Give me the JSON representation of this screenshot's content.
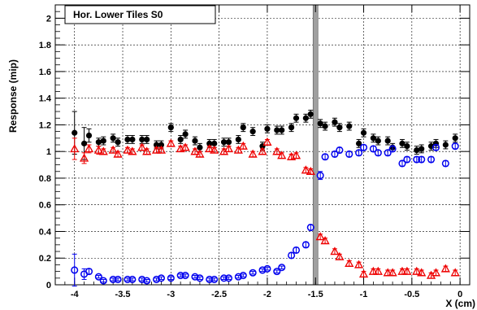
{
  "chart_data": {
    "type": "scatter",
    "title": "Hor. Lower Tiles S0",
    "xlabel": "X (cm)",
    "ylabel": "Response (mip)",
    "xlim": [
      -4.2,
      0.1
    ],
    "ylim": [
      0,
      2.1
    ],
    "x_ticks": [
      -4,
      -3.5,
      -3,
      -2.5,
      -2,
      -1.5,
      -1,
      -0.5,
      0
    ],
    "x_tick_labels": [
      "-4",
      "-3.5",
      "-3",
      "-2.5",
      "-2",
      "-1.5",
      "-1",
      "-0.5",
      "0"
    ],
    "y_ticks": [
      0,
      0.2,
      0.4,
      0.6,
      0.8,
      1,
      1.2,
      1.4,
      1.6,
      1.8,
      2
    ],
    "y_tick_labels": [
      "0",
      "0.2",
      "0.4",
      "0.6",
      "0.8",
      "1",
      "1.2",
      "1.4",
      "1.6",
      "1.8",
      "2"
    ],
    "grid": true,
    "vertical_band": {
      "x": -1.5,
      "color": "#a0a0a0"
    },
    "series": [
      {
        "marker": "filled-circle",
        "color": "#000000",
        "x": [
          -4.0,
          -3.9,
          -3.85,
          -3.75,
          -3.7,
          -3.6,
          -3.55,
          -3.45,
          -3.4,
          -3.3,
          -3.25,
          -3.15,
          -3.1,
          -3.0,
          -2.9,
          -2.85,
          -2.75,
          -2.7,
          -2.6,
          -2.55,
          -2.45,
          -2.4,
          -2.3,
          -2.25,
          -2.15,
          -2.05,
          -2.0,
          -1.9,
          -1.85,
          -1.75,
          -1.7,
          -1.6,
          -1.55,
          -1.45,
          -1.4,
          -1.3,
          -1.25,
          -1.15,
          -1.05,
          -1.0,
          -0.9,
          -0.85,
          -0.75,
          -0.7,
          -0.6,
          -0.55,
          -0.45,
          -0.4,
          -0.3,
          -0.25,
          -0.15,
          -0.05
        ],
        "y": [
          1.14,
          1.06,
          1.12,
          1.07,
          1.08,
          1.1,
          1.07,
          1.09,
          1.09,
          1.09,
          1.09,
          1.05,
          1.05,
          1.18,
          1.09,
          1.13,
          1.08,
          1.03,
          1.06,
          1.06,
          1.07,
          1.07,
          1.09,
          1.18,
          1.15,
          1.04,
          1.17,
          1.16,
          1.16,
          1.18,
          1.25,
          1.25,
          1.28,
          1.21,
          1.19,
          1.22,
          1.18,
          1.19,
          1.06,
          1.14,
          1.1,
          1.08,
          1.08,
          1.03,
          1.06,
          1.04,
          1.01,
          1.02,
          1.04,
          1.06,
          1.05,
          1.1
        ],
        "err": [
          0.16,
          0.12,
          0.05,
          0.03,
          0.03,
          0.03,
          0.03,
          0.03,
          0.03,
          0.03,
          0.03,
          0.03,
          0.03,
          0.03,
          0.03,
          0.03,
          0.03,
          0.03,
          0.03,
          0.03,
          0.03,
          0.03,
          0.03,
          0.03,
          0.03,
          0.03,
          0.03,
          0.03,
          0.03,
          0.03,
          0.03,
          0.03,
          0.03,
          0.03,
          0.03,
          0.03,
          0.03,
          0.03,
          0.03,
          0.03,
          0.03,
          0.03,
          0.03,
          0.03,
          0.03,
          0.03,
          0.03,
          0.03,
          0.03,
          0.03,
          0.03,
          0.03
        ]
      },
      {
        "marker": "open-circle",
        "color": "#0000ee",
        "x": [
          -4.0,
          -3.9,
          -3.85,
          -3.75,
          -3.7,
          -3.6,
          -3.55,
          -3.45,
          -3.4,
          -3.3,
          -3.25,
          -3.15,
          -3.1,
          -3.0,
          -2.9,
          -2.85,
          -2.75,
          -2.7,
          -2.6,
          -2.55,
          -2.45,
          -2.4,
          -2.3,
          -2.25,
          -2.15,
          -2.05,
          -2.0,
          -1.9,
          -1.85,
          -1.75,
          -1.7,
          -1.6,
          -1.55,
          -1.45,
          -1.4,
          -1.3,
          -1.25,
          -1.15,
          -1.05,
          -1.0,
          -0.9,
          -0.85,
          -0.75,
          -0.7,
          -0.6,
          -0.55,
          -0.45,
          -0.4,
          -0.3,
          -0.25,
          -0.15,
          -0.05
        ],
        "y": [
          0.11,
          0.08,
          0.1,
          0.06,
          0.03,
          0.04,
          0.04,
          0.04,
          0.04,
          0.04,
          0.03,
          0.04,
          0.05,
          0.05,
          0.07,
          0.07,
          0.06,
          0.05,
          0.04,
          0.04,
          0.05,
          0.05,
          0.06,
          0.07,
          0.09,
          0.11,
          0.12,
          0.1,
          0.13,
          0.22,
          0.26,
          0.3,
          0.43,
          0.82,
          0.96,
          0.98,
          1.01,
          0.98,
          0.99,
          1.03,
          1.02,
          0.99,
          0.99,
          1.02,
          0.91,
          0.94,
          0.94,
          0.94,
          0.94,
          1.03,
          0.91,
          1.04
        ],
        "err": [
          0.12,
          0.04,
          0.02,
          0.01,
          0.01,
          0.01,
          0.01,
          0.01,
          0.01,
          0.01,
          0.01,
          0.01,
          0.01,
          0.01,
          0.01,
          0.01,
          0.01,
          0.01,
          0.01,
          0.01,
          0.01,
          0.01,
          0.01,
          0.01,
          0.01,
          0.01,
          0.01,
          0.01,
          0.01,
          0.02,
          0.02,
          0.02,
          0.02,
          0.03,
          0.02,
          0.02,
          0.02,
          0.02,
          0.02,
          0.02,
          0.02,
          0.02,
          0.02,
          0.02,
          0.02,
          0.02,
          0.02,
          0.02,
          0.02,
          0.02,
          0.02,
          0.02
        ]
      },
      {
        "marker": "open-triangle",
        "color": "#ee0000",
        "x": [
          -4.0,
          -3.9,
          -3.85,
          -3.75,
          -3.7,
          -3.6,
          -3.55,
          -3.45,
          -3.4,
          -3.3,
          -3.25,
          -3.15,
          -3.1,
          -3.0,
          -2.9,
          -2.85,
          -2.75,
          -2.7,
          -2.6,
          -2.55,
          -2.45,
          -2.4,
          -2.3,
          -2.25,
          -2.15,
          -2.05,
          -2.0,
          -1.9,
          -1.85,
          -1.75,
          -1.7,
          -1.6,
          -1.55,
          -1.45,
          -1.4,
          -1.3,
          -1.25,
          -1.15,
          -1.05,
          -1.0,
          -0.9,
          -0.85,
          -0.75,
          -0.7,
          -0.6,
          -0.55,
          -0.45,
          -0.4,
          -0.3,
          -0.25,
          -0.15,
          -0.05
        ],
        "y": [
          1.02,
          0.95,
          1.02,
          1.01,
          1.0,
          1.01,
          0.98,
          1.01,
          1.0,
          1.03,
          1.0,
          1.01,
          1.01,
          1.06,
          1.02,
          1.03,
          1.0,
          0.98,
          1.02,
          1.01,
          1.0,
          1.02,
          1.01,
          1.04,
          0.98,
          1.0,
          1.07,
          1.0,
          0.97,
          0.96,
          0.97,
          0.86,
          0.85,
          0.36,
          0.33,
          0.25,
          0.21,
          0.16,
          0.15,
          0.08,
          0.1,
          0.1,
          0.09,
          0.09,
          0.1,
          0.1,
          0.1,
          0.09,
          0.07,
          0.09,
          0.12,
          0.09
        ],
        "err": [
          0.08,
          0.04,
          0.03,
          0.03,
          0.02,
          0.02,
          0.02,
          0.02,
          0.02,
          0.02,
          0.02,
          0.02,
          0.02,
          0.02,
          0.02,
          0.02,
          0.02,
          0.02,
          0.02,
          0.02,
          0.02,
          0.02,
          0.02,
          0.02,
          0.02,
          0.02,
          0.02,
          0.02,
          0.02,
          0.02,
          0.02,
          0.02,
          0.02,
          0.02,
          0.02,
          0.02,
          0.02,
          0.02,
          0.02,
          0.02,
          0.02,
          0.02,
          0.02,
          0.02,
          0.02,
          0.02,
          0.02,
          0.02,
          0.02,
          0.02,
          0.02,
          0.02
        ]
      }
    ]
  }
}
